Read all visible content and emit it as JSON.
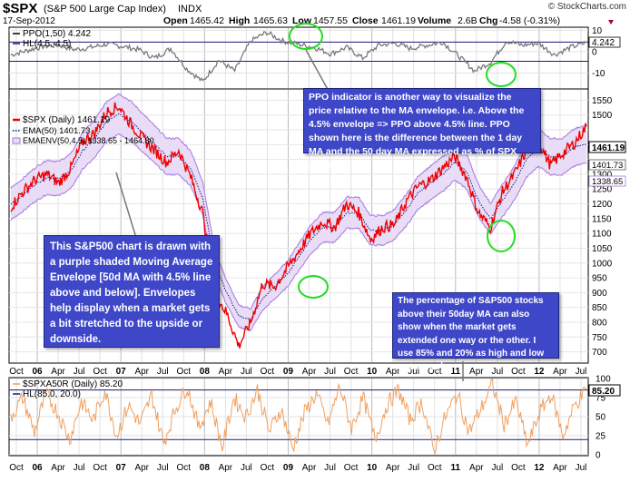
{
  "header": {
    "symbol": "$SPX",
    "name": "(S&P 500 Large Cap Index)",
    "exchange": "INDX",
    "date": "17-Sep-2012",
    "open_label": "Open",
    "open": "1465.42",
    "high_label": "High",
    "high": "1465.63",
    "low_label": "Low",
    "low": "1457.55",
    "close_label": "Close",
    "close": "1461.19",
    "volume_label": "Volume",
    "volume": "2.6B",
    "chg_label": "Chg",
    "chg": "-4.58 (-0.31%)",
    "watermark": "© StockCharts.com"
  },
  "legend": {
    "ppo": "PPO(1,50) 4.242",
    "hl1": "HL(4.5,-4.5)",
    "spx": "$SPX (Daily) 1461.19",
    "ema": "EMA(50) 1401.73",
    "emaenv": "EMAENV(50,4.5) 1338.65 - 1464.80",
    "breadth": "$SPXA50R (Daily) 85.20",
    "hl2": "HL(85.0, 20.0)"
  },
  "price_tags": {
    "ppo": "4.242",
    "close": "1461.19",
    "ema": "1401.73",
    "env_low": "1338.65",
    "breadth": "85.20"
  },
  "annotations": {
    "ppo_note": "PPO indicator is another way to visualize the price relative to the MA envelope.  i.e. Above the 4.5% envelope => PPO above 4.5% line.  PPO shown here is the difference between the 1 day MA and the 50 day MA expressed as % of SPX price.",
    "envelope_note": "This S&P500 chart is drawn with a purple shaded Moving Average Envelope [50d MA with 4.5% line above and below]. Envelopes help display when a market gets a bit stretched to the upside or downside.",
    "breadth_note": "The percentage of S&P500 stocks above their 50day MA can also show when the market gets extended one way or the other.  I use 85% and 20% as high and low water marks."
  },
  "colors": {
    "price": "#ee0000",
    "envelope_fill": "#e8dcf6",
    "envelope_line": "#a678de",
    "ema": "#1a1a7a",
    "ppo": "#7a7a7a",
    "breadth": "#f0a060",
    "highlight_circle": "#22dd22",
    "note_bg": "#3f47c9"
  },
  "chart_data": [
    {
      "type": "line",
      "name": "PPO panel",
      "series": [
        {
          "name": "PPO(1,50)",
          "values": [
            -1.5,
            0.5,
            2.5,
            3.0,
            1.0,
            2.0,
            3.5,
            2.5,
            1.0,
            -3.0,
            1.5,
            -8.0,
            -14.0,
            -4.0,
            -9.0,
            5.0,
            9.0,
            5.0,
            3.5,
            2.0,
            -1.0,
            2.0,
            -3.0,
            3.0,
            4.0,
            1.5,
            3.0,
            4.5,
            -2.0,
            -9.0,
            -5.0,
            5.0,
            3.0,
            4.0,
            -1.5,
            2.0,
            4.242
          ]
        }
      ],
      "hlines": [
        4.5,
        -4.5
      ],
      "y_ticks": [
        10,
        4.242,
        0,
        -10
      ],
      "ylim": [
        -17,
        11
      ]
    },
    {
      "type": "line",
      "name": "Price panel",
      "series": [
        {
          "name": "$SPX (Daily)",
          "values": [
            1190,
            1240,
            1280,
            1300,
            1270,
            1320,
            1410,
            1440,
            1510,
            1530,
            1470,
            1420,
            1380,
            1340,
            1380,
            1290,
            1170,
            900,
            830,
            720,
            800,
            930,
            920,
            980,
            1040,
            1100,
            1140,
            1120,
            1200,
            1170,
            1080,
            1120,
            1130,
            1210,
            1260,
            1280,
            1320,
            1360,
            1290,
            1170,
            1120,
            1240,
            1300,
            1380,
            1410,
            1330,
            1370,
            1405,
            1461.19
          ]
        },
        {
          "name": "EMA(50)",
          "values": [
            1200,
            1230,
            1265,
            1290,
            1285,
            1310,
            1380,
            1420,
            1480,
            1505,
            1480,
            1440,
            1400,
            1360,
            1360,
            1320,
            1220,
            1000,
            900,
            820,
            810,
            880,
            920,
            960,
            1020,
            1080,
            1120,
            1120,
            1170,
            1170,
            1110,
            1110,
            1130,
            1180,
            1240,
            1270,
            1300,
            1340,
            1310,
            1210,
            1150,
            1210,
            1270,
            1350,
            1390,
            1360,
            1360,
            1390,
            1401.73
          ]
        }
      ],
      "envelope_pct": 4.5,
      "y_ticks": [
        700,
        750,
        800,
        850,
        900,
        950,
        1000,
        1050,
        1100,
        1150,
        1200,
        1250,
        1300,
        1350,
        1400,
        1450,
        1500,
        1550
      ],
      "ylim": [
        665,
        1585
      ]
    },
    {
      "type": "line",
      "name": "Breadth panel",
      "series": [
        {
          "name": "$SPXA50R (Daily)",
          "values": [
            50,
            75,
            30,
            80,
            55,
            20,
            70,
            45,
            85,
            25,
            65,
            40,
            78,
            15,
            60,
            90,
            35,
            70,
            10,
            75,
            50,
            85,
            30,
            60,
            8,
            55,
            80,
            40,
            90,
            35,
            75,
            20,
            65,
            85,
            45,
            70,
            5,
            50,
            80,
            30,
            60,
            92,
            40,
            70,
            12,
            55,
            80,
            25,
            65,
            85.2
          ]
        }
      ],
      "hlines": [
        85,
        20
      ],
      "y_ticks": [
        100,
        85.2,
        75,
        50,
        25,
        0
      ],
      "ylim": [
        0,
        100
      ]
    }
  ],
  "x_axis": {
    "labels": [
      "Oct",
      "06",
      "Apr",
      "Jul",
      "Oct",
      "07",
      "Apr",
      "Jul",
      "Oct",
      "08",
      "Apr",
      "Jul",
      "Oct",
      "09",
      "Apr",
      "Jul",
      "Oct",
      "10",
      "Apr",
      "Jul",
      "Oct",
      "11",
      "Apr",
      "Jul",
      "Oct",
      "12",
      "Apr",
      "Jul"
    ],
    "bold": [
      "06",
      "07",
      "08",
      "09",
      "10",
      "11",
      "12"
    ]
  }
}
